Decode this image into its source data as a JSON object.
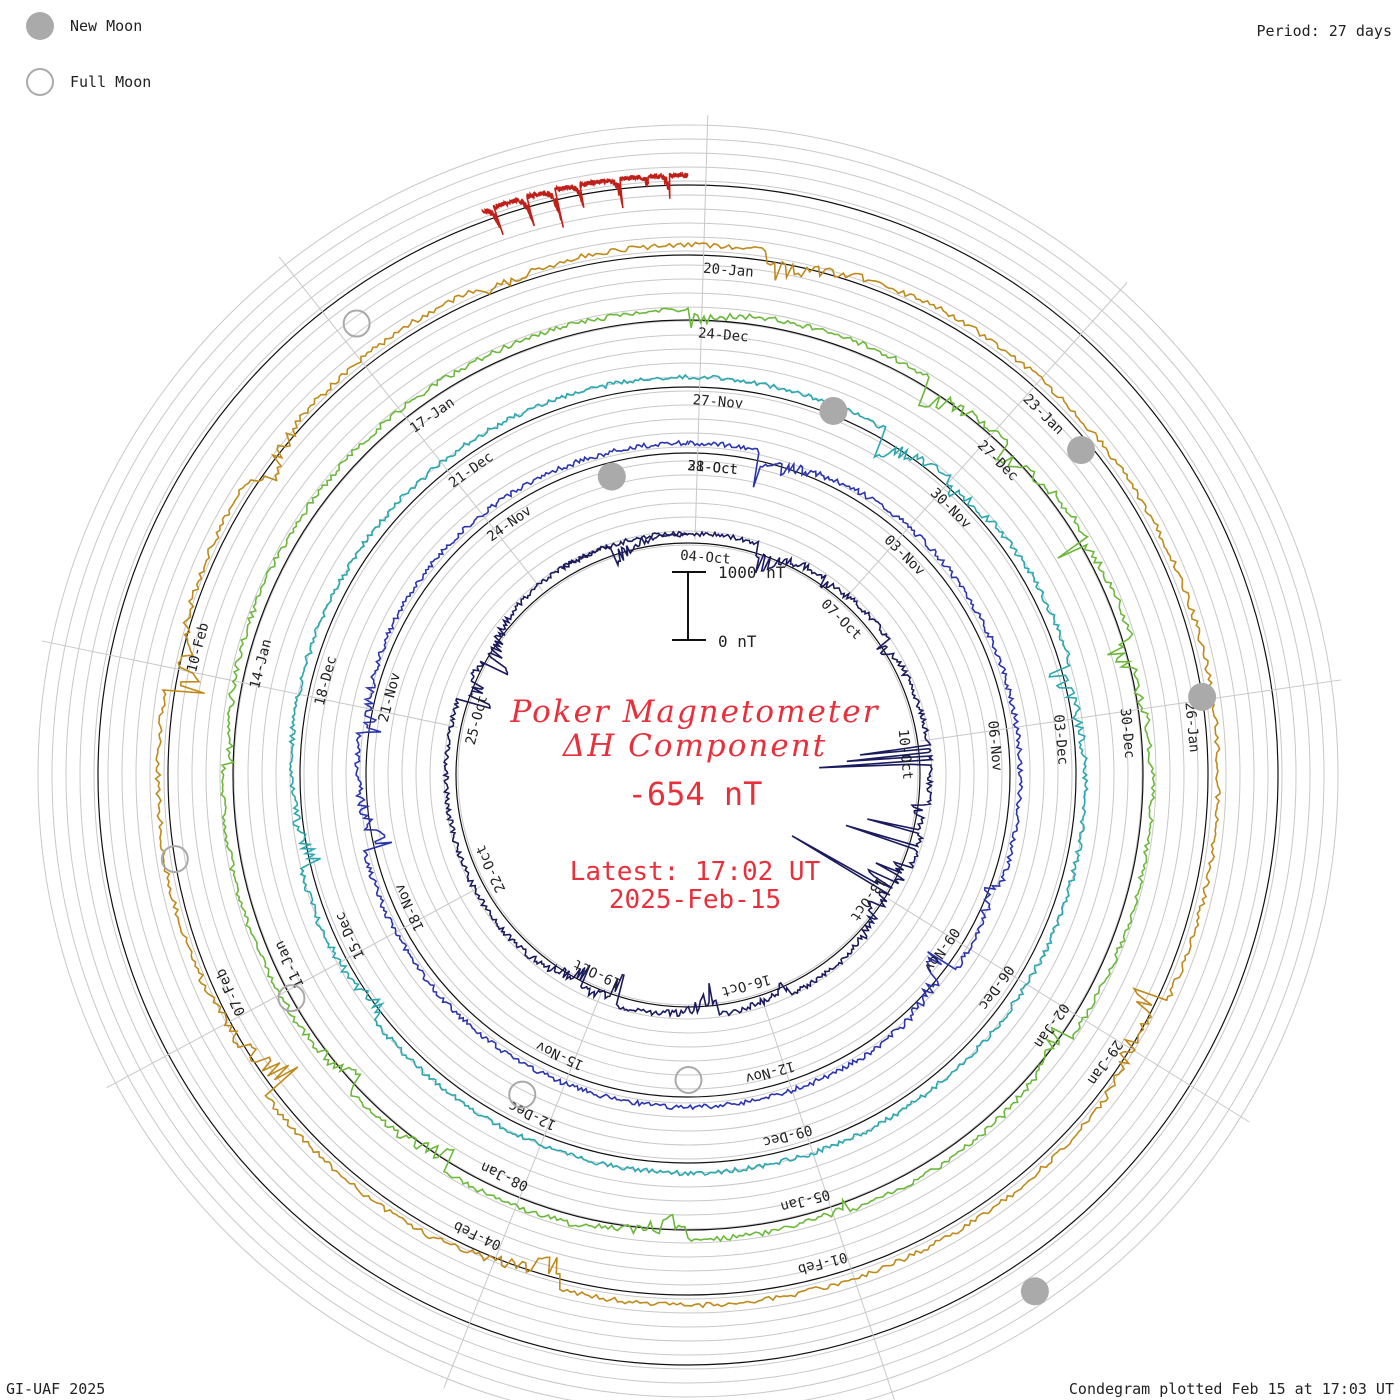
{
  "legend": {
    "new_moon_label": "New Moon",
    "full_moon_label": "Full Moon",
    "new_moon_color": "#aaaaaa",
    "full_moon_color": "#aaaaaa"
  },
  "period_label": "Period: 27 days",
  "credit": "GI-UAF 2025",
  "plotted_label": "Condegram plotted Feb 15 at 17:03 UT",
  "title_line1": "Poker Magnetometer",
  "title_line2": "ΔH Component",
  "current_value": "-654 nT",
  "latest_line1": "Latest: 17:02 UT",
  "latest_line2": "2025-Feb-15",
  "scale": {
    "high_label": "1000 nT",
    "low_label": "0 nT"
  },
  "chart_data": {
    "type": "line",
    "title": "Poker Magnetometer ΔH Component",
    "period_days": 27,
    "scale_bar_nT": 1000,
    "grid": true,
    "rings": [
      {
        "color": "#1a1a5e",
        "dates": [
          "04-Oct",
          "07-Oct",
          "10-Oct",
          "13-Oct",
          "16-Oct",
          "19-Oct",
          "22-Oct",
          "25-Oct"
        ]
      },
      {
        "color": "#2b35b0",
        "dates": [
          "31-Oct",
          "03-Nov",
          "06-Nov",
          "09-Nov",
          "12-Nov",
          "15-Nov",
          "18-Nov",
          "21-Nov",
          "24-Nov",
          "28-Oct"
        ]
      },
      {
        "color": "#2aa8b0",
        "dates": [
          "27-Nov",
          "30-Nov",
          "03-Dec",
          "06-Dec",
          "09-Dec",
          "12-Dec",
          "15-Dec",
          "18-Dec",
          "21-Dec"
        ]
      },
      {
        "color": "#6bb83a",
        "dates": [
          "24-Dec",
          "27-Dec",
          "30-Dec",
          "02-Jan",
          "05-Jan",
          "08-Jan",
          "11-Jan",
          "14-Jan",
          "17-Jan"
        ]
      },
      {
        "color": "#c08a1a",
        "dates": [
          "20-Jan",
          "23-Jan",
          "26-Jan",
          "29-Jan",
          "01-Feb",
          "04-Feb",
          "07-Feb",
          "10-Feb"
        ]
      },
      {
        "color": "#c0201a",
        "dates": []
      }
    ],
    "new_moon_dates_approx": [
      "02-Oct",
      "01-Nov",
      "01-Dec",
      "30-Dec",
      "29-Jan"
    ],
    "full_moon_dates_approx": [
      "17-Oct",
      "15-Nov",
      "15-Dec",
      "13-Jan",
      "12-Feb"
    ]
  }
}
